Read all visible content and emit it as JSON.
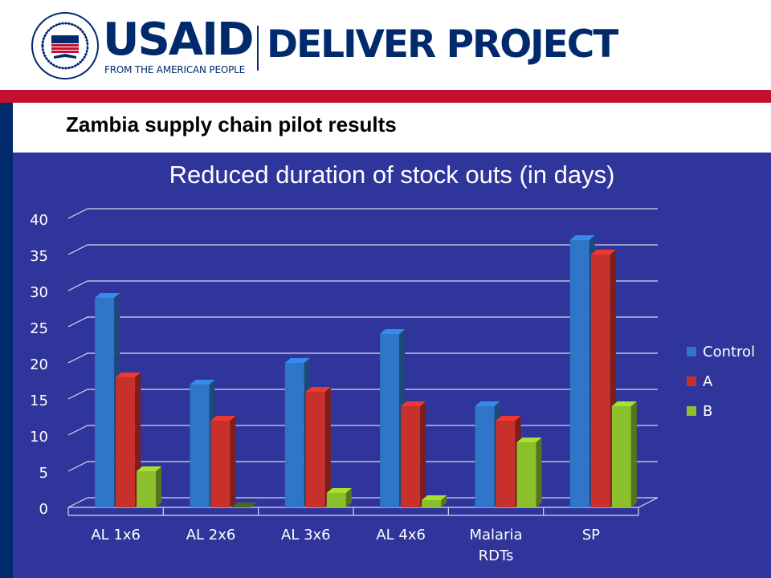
{
  "header": {
    "logo_seal_text": "UNITED STATES AGENCY FOR INTERNATIONAL DEVELOPMENT",
    "seal_center_text": "USAID",
    "brand": "USAID",
    "brand_tagline": "FROM THE AMERICAN PEOPLE",
    "project": "DELIVER PROJECT"
  },
  "slide": {
    "subtitle": "Zambia supply chain pilot results"
  },
  "colors": {
    "navy": "#002a6c",
    "red_band": "#c2102e",
    "slide_bg": "#30359b",
    "control": "#2f76c8",
    "a": "#c8302c",
    "b": "#8cbf2c"
  },
  "chart_data": {
    "type": "bar",
    "title": "Reduced duration of stock outs (in days)",
    "categories": [
      [
        "AL 1x6"
      ],
      [
        "AL 2x6"
      ],
      [
        "AL 3x6"
      ],
      [
        "AL 4x6"
      ],
      [
        "Malaria",
        "RDTs"
      ],
      [
        "SP"
      ]
    ],
    "series": [
      {
        "name": "Control",
        "color": "#2f76c8",
        "values": [
          29,
          17,
          20,
          24,
          14,
          37
        ]
      },
      {
        "name": "A",
        "color": "#c8302c",
        "values": [
          18,
          12,
          16,
          14,
          12,
          35
        ]
      },
      {
        "name": "B",
        "color": "#8cbf2c",
        "values": [
          5,
          0,
          2,
          1,
          9,
          14
        ]
      }
    ],
    "ylim": [
      0,
      40
    ],
    "yticks": [
      "0",
      "5",
      "10",
      "15",
      "20",
      "25",
      "30",
      "35",
      "40"
    ],
    "grid": true,
    "legend_position": "right",
    "style": "3d-clustered"
  }
}
